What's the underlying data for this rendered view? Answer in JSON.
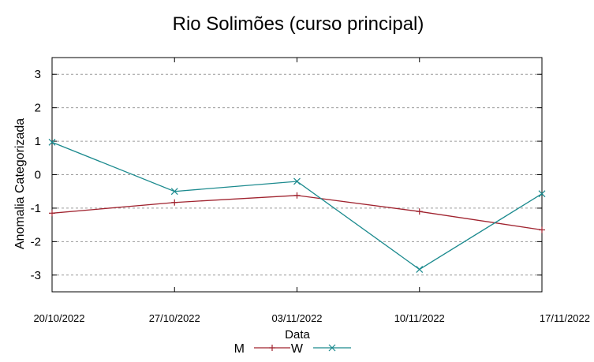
{
  "chart_data": {
    "type": "line",
    "title": "Rio Solimões (curso principal)",
    "xlabel": "Data",
    "ylabel": "Anomalia Categorizada",
    "categories": [
      "20/10/2022",
      "27/10/2022",
      "03/11/2022",
      "10/11/2022",
      "17/11/2022"
    ],
    "yticks": [
      -3,
      -2,
      -1,
      0,
      1,
      2,
      3
    ],
    "ylim": [
      -3.5,
      3.5
    ],
    "grid": "horizontal dashed",
    "legend_position": "bottom-center",
    "series": [
      {
        "name": "M",
        "color": "#a0232f",
        "marker": "plus",
        "values": [
          -1.15,
          -0.83,
          -0.62,
          -1.1,
          -1.65
        ]
      },
      {
        "name": "W",
        "color": "#1b8a8e",
        "marker": "x",
        "values": [
          0.97,
          -0.5,
          -0.2,
          -2.83,
          -0.57
        ]
      }
    ]
  }
}
